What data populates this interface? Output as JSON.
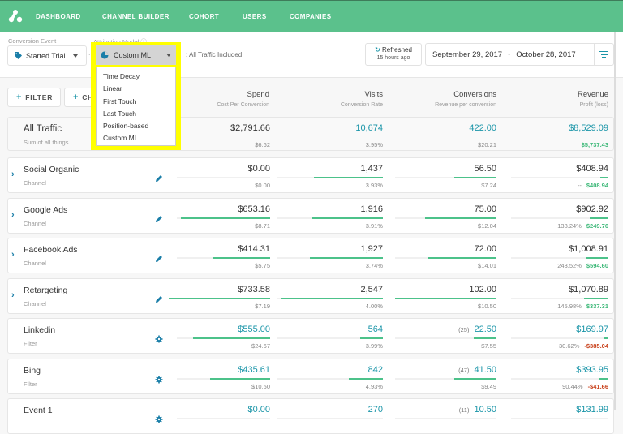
{
  "nav": {
    "items": [
      "DASHBOARD",
      "CHANNEL BUILDER",
      "COHORT",
      "USERS",
      "COMPANIES"
    ],
    "active": "DASHBOARD",
    "brand_color": "#5bc18c"
  },
  "header": {
    "conversion_event_label": "Conversion Event",
    "conversion_event_value": "Started Trial",
    "attribution_model_label": "Attribution Model ⓘ",
    "attribution_model_value": "Custom ML",
    "traffic_label": ": All Traffic Included",
    "refresh": {
      "title": "Refreshed",
      "subtitle": "15 hours ago"
    },
    "date_start": "September 29, 2017",
    "date_sep": "-",
    "date_end": "October 28, 2017"
  },
  "dropdown": {
    "options": [
      "Time Decay",
      "Linear",
      "First Touch",
      "Last Touch",
      "Position-based",
      "Custom ML"
    ],
    "selected": "Custom ML",
    "highlight_color": "#ffff00"
  },
  "toolbar": {
    "filter_label": "FILTER",
    "channel_label": "CH",
    "plus": "+"
  },
  "columns": [
    {
      "title": "Spend",
      "subtitle": "Cost Per Conversion"
    },
    {
      "title": "Visits",
      "subtitle": "Conversion Rate"
    },
    {
      "title": "Conversions",
      "subtitle": "Revenue per conversion"
    },
    {
      "title": "Revenue",
      "subtitle": "Profit (loss)"
    }
  ],
  "total": {
    "name": "All Traffic",
    "type": "Sum of all things",
    "spend": "$2,791.66",
    "cpc": "$6.62",
    "visits": "10,674",
    "rate": "3.95%",
    "conversions": "422.00",
    "rpc": "$20.21",
    "revenue": "$8,529.09",
    "profit": "$5,737.43"
  },
  "rows": [
    {
      "name": "Social Organic",
      "type": "Channel",
      "icon": "pencil-icon",
      "spend": "$0.00",
      "cpc": "$0.00",
      "visits": "1,437",
      "rate": "3.93%",
      "conv_prefix": "",
      "conversions": "56.50",
      "rpc": "$7.24",
      "revenue": "$408.94",
      "roi": "--",
      "profit": "$408.94",
      "profit_sign": "pos",
      "bars": [
        0,
        85,
        52,
        10
      ]
    },
    {
      "name": "Google Ads",
      "type": "Channel",
      "icon": "pencil-icon",
      "spend": "$653.16",
      "cpc": "$8.71",
      "visits": "1,916",
      "rate": "3.91%",
      "conv_prefix": "",
      "conversions": "75.00",
      "rpc": "$12.04",
      "revenue": "$902.92",
      "roi": "138.24%",
      "profit": "$249.76",
      "profit_sign": "pos",
      "bars": [
        110,
        87,
        88,
        23
      ]
    },
    {
      "name": "Facebook Ads",
      "type": "Channel",
      "icon": "pencil-icon",
      "spend": "$414.31",
      "cpc": "$5.75",
      "visits": "1,927",
      "rate": "3.74%",
      "conv_prefix": "",
      "conversions": "72.00",
      "rpc": "$14.01",
      "revenue": "$1,008.91",
      "roi": "243.52%",
      "profit": "$594.60",
      "profit_sign": "pos",
      "bars": [
        70,
        90,
        84,
        28
      ]
    },
    {
      "name": "Retargeting",
      "type": "Channel",
      "icon": "pencil-icon",
      "spend": "$733.58",
      "cpc": "$7.19",
      "visits": "2,547",
      "rate": "4.00%",
      "conv_prefix": "",
      "conversions": "102.00",
      "rpc": "$10.50",
      "revenue": "$1,070.89",
      "roi": "145.98%",
      "profit": "$337.31",
      "profit_sign": "pos",
      "bars": [
        125,
        125,
        125,
        30
      ]
    },
    {
      "name": "Linkedin",
      "type": "Filter",
      "icon": "gear-icon",
      "spend": "$555.00",
      "cpc": "$24.67",
      "visits": "564",
      "rate": "3.99%",
      "conv_prefix": "(25)",
      "conversions": "22.50",
      "rpc": "$7.55",
      "revenue": "$169.97",
      "roi": "30.62%",
      "profit": "-$385.04",
      "profit_sign": "neg",
      "bars": [
        95,
        28,
        28,
        5
      ]
    },
    {
      "name": "Bing",
      "type": "Filter",
      "icon": "gear-icon",
      "spend": "$435.61",
      "cpc": "$10.50",
      "visits": "842",
      "rate": "4.93%",
      "conv_prefix": "(47)",
      "conversions": "41.50",
      "rpc": "$9.49",
      "revenue": "$393.95",
      "roi": "90.44%",
      "profit": "-$41.66",
      "profit_sign": "neg",
      "bars": [
        74,
        42,
        52,
        11
      ]
    },
    {
      "name": "Event 1",
      "type": "",
      "icon": "gear-icon",
      "spend": "$0.00",
      "cpc": "",
      "visits": "270",
      "rate": "",
      "conv_prefix": "(11)",
      "conversions": "10.50",
      "rpc": "",
      "revenue": "$131.99",
      "roi": "",
      "profit": "",
      "profit_sign": "pos",
      "bars": [
        0,
        0,
        0,
        0
      ]
    }
  ]
}
